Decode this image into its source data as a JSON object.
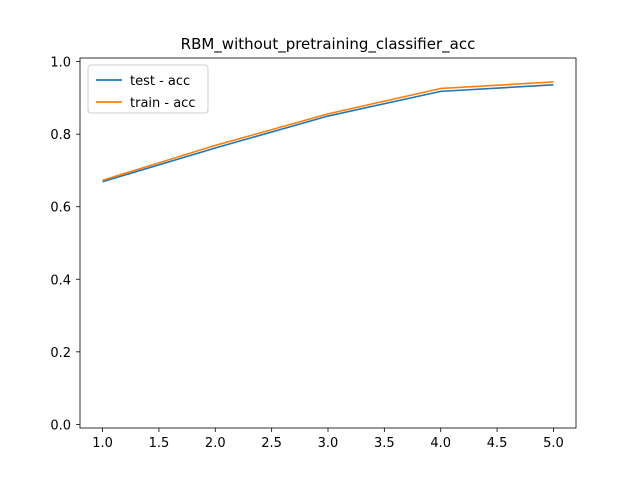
{
  "chart_data": {
    "type": "line",
    "title": "RBM_without_pretraining_classifier_acc",
    "xlabel": "",
    "ylabel": "",
    "x": [
      1,
      2,
      3,
      4,
      5
    ],
    "xlim": [
      0.8,
      5.2
    ],
    "ylim": [
      -0.01,
      1.01
    ],
    "xticks": [
      1.0,
      1.5,
      2.0,
      2.5,
      3.0,
      3.5,
      4.0,
      4.5,
      5.0
    ],
    "xtick_labels": [
      "1.0",
      "1.5",
      "2.0",
      "2.5",
      "3.0",
      "3.5",
      "4.0",
      "4.5",
      "5.0"
    ],
    "yticks": [
      0.0,
      0.2,
      0.4,
      0.6,
      0.8,
      1.0
    ],
    "ytick_labels": [
      "0.0",
      "0.2",
      "0.4",
      "0.6",
      "0.8",
      "1.0"
    ],
    "grid": false,
    "legend_position": "top-left",
    "series": [
      {
        "name": "test - acc",
        "color": "#1f77b4",
        "values": [
          0.669,
          0.762,
          0.85,
          0.918,
          0.936
        ]
      },
      {
        "name": "train - acc",
        "color": "#ff7f0e",
        "values": [
          0.673,
          0.769,
          0.856,
          0.926,
          0.944
        ]
      }
    ]
  }
}
